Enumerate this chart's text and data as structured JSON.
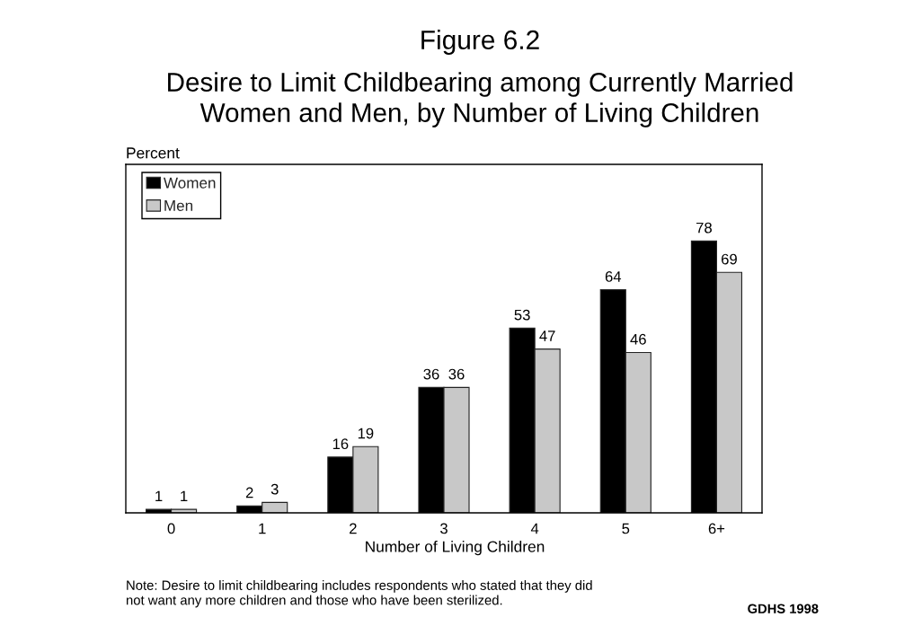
{
  "chart_data": {
    "type": "bar",
    "title": "Figure 6.2",
    "subtitle": "Desire to Limit Childbearing among Currently Married\nWomen and Men, by Number of Living Children",
    "xlabel": "Number of Living Children",
    "ylabel": "Percent",
    "categories": [
      "0",
      "1",
      "2",
      "3",
      "4",
      "5",
      "6+"
    ],
    "series": [
      {
        "name": "Women",
        "color": "#000000",
        "values": [
          1,
          2,
          16,
          36,
          53,
          64,
          78
        ]
      },
      {
        "name": "Men",
        "color": "#c8c8c8",
        "values": [
          1,
          3,
          19,
          36,
          47,
          46,
          69
        ]
      }
    ],
    "ylim": [
      0,
      100
    ],
    "tick_labels": "x",
    "data_labels": true,
    "legend": "top left",
    "annotations": [
      "Note: Desire to limit childbearing includes respondents who stated that they did\nnot want any more children and those who have been sterilized.",
      "GDHS 1998"
    ]
  }
}
